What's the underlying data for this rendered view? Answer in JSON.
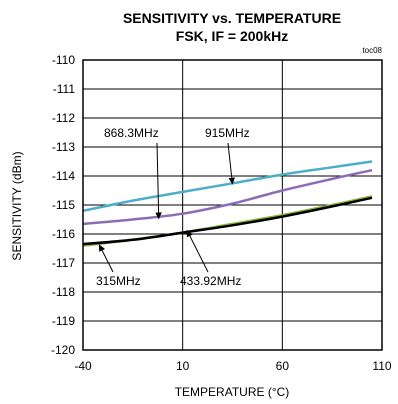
{
  "chart_data": {
    "type": "line",
    "title": "SENSITIVITY vs. TEMPERATURE",
    "subtitle": "FSK, IF = 200kHz",
    "figure_code": "toc08",
    "xlabel": "TEMPERATURE (°C)",
    "ylabel": "SENSITIVITY (dBm)",
    "xlim": [
      -40,
      110
    ],
    "ylim": [
      -120,
      -110
    ],
    "x_ticks": [
      -40,
      10,
      60,
      110
    ],
    "y_ticks": [
      -110,
      -111,
      -112,
      -113,
      -114,
      -115,
      -116,
      -117,
      -118,
      -119,
      -120
    ],
    "x_tick_labels": [
      "-40",
      "10",
      "60",
      "110"
    ],
    "y_tick_labels": [
      "-110",
      "-111",
      "-112",
      "-113",
      "-114",
      "-115",
      "-116",
      "-117",
      "-118",
      "-119",
      "-120"
    ],
    "grid": true,
    "series": [
      {
        "name": "915MHz",
        "color": "#4bafc8",
        "x": [
          -40,
          -15,
          10,
          35,
          60,
          85,
          105
        ],
        "y": [
          -115.2,
          -114.85,
          -114.55,
          -114.25,
          -113.95,
          -113.7,
          -113.5
        ]
      },
      {
        "name": "868.3MHz",
        "color": "#8b6db5",
        "x": [
          -40,
          -15,
          10,
          35,
          60,
          85,
          105
        ],
        "y": [
          -115.65,
          -115.5,
          -115.3,
          -114.95,
          -114.5,
          -114.1,
          -113.8
        ]
      },
      {
        "name": "433.92MHz",
        "color": "#8ab43c",
        "x": [
          -40,
          -15,
          10,
          35,
          60,
          85,
          105
        ],
        "y": [
          -116.4,
          -116.2,
          -115.95,
          -115.65,
          -115.35,
          -115.0,
          -114.7
        ]
      },
      {
        "name": "315MHz",
        "color": "#000000",
        "x": [
          -40,
          -15,
          10,
          35,
          60,
          85,
          105
        ],
        "y": [
          -116.35,
          -116.2,
          -115.95,
          -115.7,
          -115.4,
          -115.05,
          -114.75
        ]
      }
    ],
    "annotations": [
      {
        "text": "868.3MHz",
        "arrow_tip_x": -2,
        "arrow_tip_y": -115.5
      },
      {
        "text": "915MHz",
        "arrow_tip_x": 35,
        "arrow_tip_y": -114.3
      },
      {
        "text": "315MHz",
        "arrow_tip_x": -32,
        "arrow_tip_y": -116.35
      },
      {
        "text": "433.92MHz",
        "arrow_tip_x": 12,
        "arrow_tip_y": -115.85
      }
    ]
  }
}
